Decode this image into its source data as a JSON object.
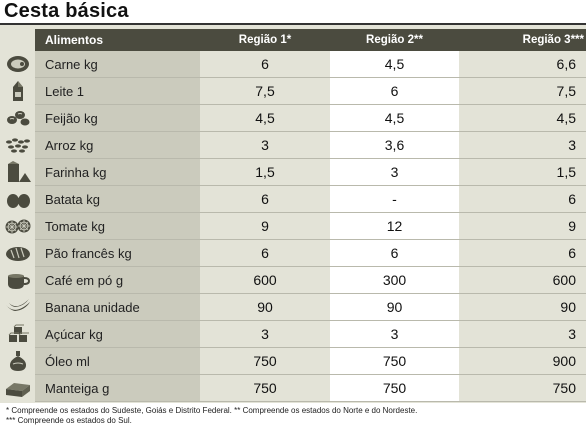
{
  "title": "Cesta básica",
  "headers": [
    "Alimentos",
    "Região 1*",
    "Região 2**",
    "Região 3***"
  ],
  "rows": [
    {
      "icon": "meat-icon",
      "item": "Carne kg",
      "r1": "6",
      "r2": "4,5",
      "r3": "6,6"
    },
    {
      "icon": "milk-icon",
      "item": "Leite 1",
      "r1": "7,5",
      "r2": "6",
      "r3": "7,5"
    },
    {
      "icon": "beans-icon",
      "item": "Feijão kg",
      "r1": "4,5",
      "r2": "4,5",
      "r3": "4,5"
    },
    {
      "icon": "rice-icon",
      "item": "Arroz kg",
      "r1": "3",
      "r2": "3,6",
      "r3": "3"
    },
    {
      "icon": "flour-icon",
      "item": "Farinha kg",
      "r1": "1,5",
      "r2": "3",
      "r3": "1,5"
    },
    {
      "icon": "potato-icon",
      "item": "Batata kg",
      "r1": "6",
      "r2": "-",
      "r3": "6"
    },
    {
      "icon": "tomato-icon",
      "item": "Tomate kg",
      "r1": "9",
      "r2": "12",
      "r3": "9"
    },
    {
      "icon": "bread-icon",
      "item": "Pão francês kg",
      "r1": "6",
      "r2": "6",
      "r3": "6"
    },
    {
      "icon": "coffee-icon",
      "item": "Café em pó g",
      "r1": "600",
      "r2": "300",
      "r3": "600"
    },
    {
      "icon": "banana-icon",
      "item": "Banana unidade",
      "r1": "90",
      "r2": "90",
      "r3": "90"
    },
    {
      "icon": "sugar-icon",
      "item": "Açúcar kg",
      "r1": "3",
      "r2": "3",
      "r3": "3"
    },
    {
      "icon": "oil-icon",
      "item": "Óleo ml",
      "r1": "750",
      "r2": "750",
      "r3": "900"
    },
    {
      "icon": "butter-icon",
      "item": "Manteiga g",
      "r1": "750",
      "r2": "750",
      "r3": "750"
    }
  ],
  "footnotes": [
    "* Compreende os estados do Sudeste, Goiás e Distrito Federal.  ** Compreende os estados do Norte e do Nordeste.",
    "*** Compreende os estados do Sul."
  ]
}
